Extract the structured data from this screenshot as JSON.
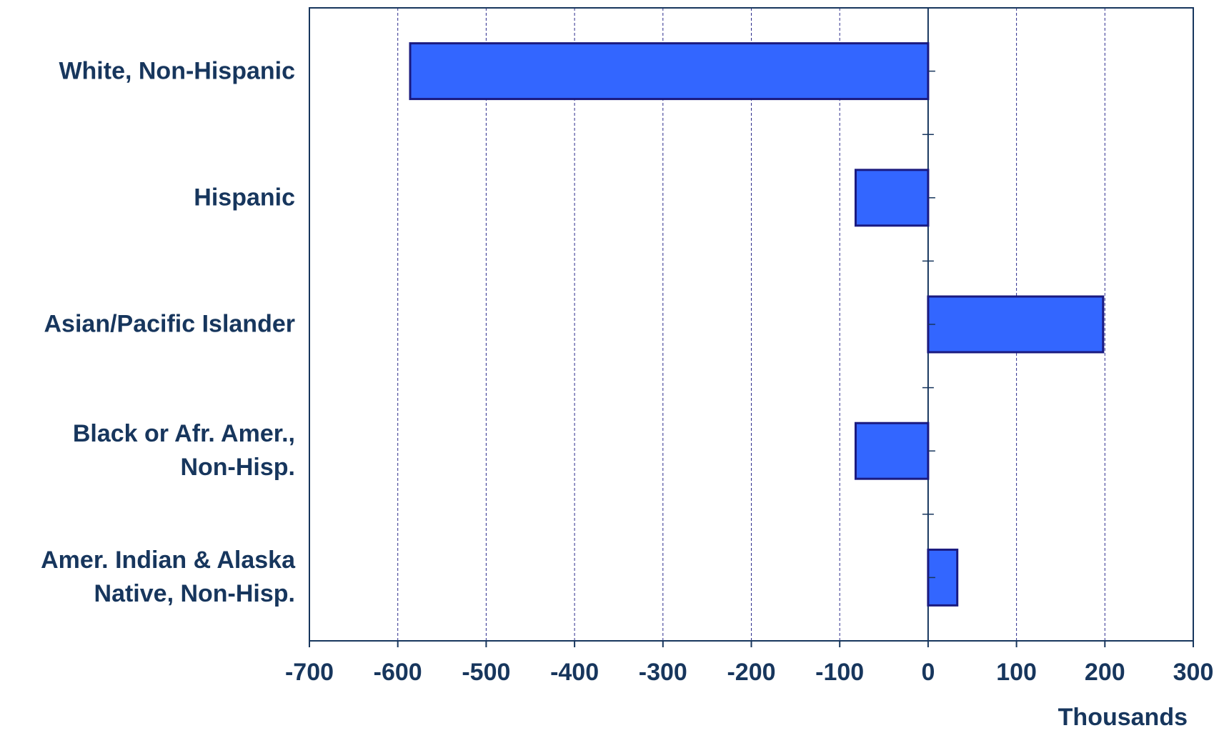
{
  "chart_data": {
    "type": "barh",
    "categories": [
      "White, Non-Hispanic",
      "Hispanic",
      "Asian/Pacific Islander",
      "Black or Afr. Amer.,\nNon-Hisp.",
      "Amer. Indian & Alaska\nNative, Non-Hisp."
    ],
    "values": [
      -586,
      -82,
      198,
      -82,
      33
    ],
    "color": "#3366ff",
    "xlim": [
      -700,
      300
    ],
    "xticks": [
      -700,
      -600,
      -500,
      -400,
      -300,
      -200,
      -100,
      0,
      100,
      200,
      300
    ],
    "xlabel": "Thousands",
    "grid": true
  }
}
